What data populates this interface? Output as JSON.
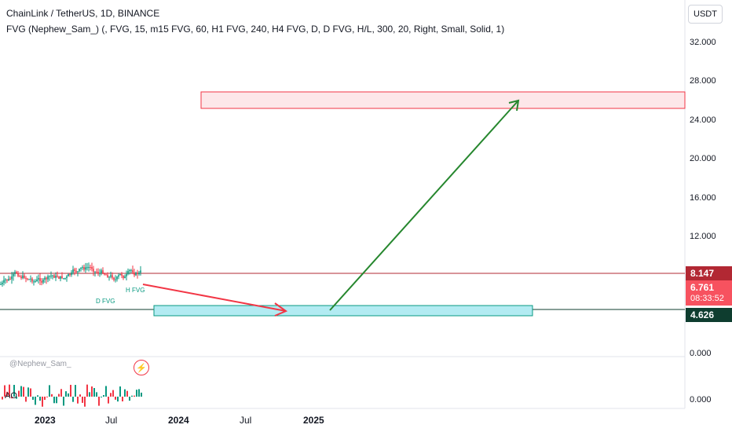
{
  "header": {
    "symbol_line": "ChainLink / TetherUS, 1D, BINANCE",
    "indicator_line": "FVG (Nephew_Sam_) (, FVG, 15, m15 FVG, 60, H1 FVG, 240, H4 FVG, D, D FVG, H/L, 300, 20, Right, Small, Solid, 1)"
  },
  "toolbar": {
    "currency": "USDT"
  },
  "price_axis": {
    "ticks": [
      "32.000",
      "28.000",
      "24.000",
      "20.000",
      "16.000",
      "12.000",
      "0.000"
    ],
    "sub_tick": "0.000"
  },
  "time_axis": {
    "ticks": [
      "2023",
      "Jul",
      "2024",
      "Jul",
      "2025"
    ]
  },
  "price_labels": {
    "resistance": {
      "value": "8.147",
      "color": "#b22833"
    },
    "current": {
      "value": "6.761",
      "countdown": "08:33:52",
      "color": "#f7525f"
    },
    "support": {
      "value": "4.626",
      "color": "#0e3d2f"
    }
  },
  "drawings": {
    "upper_zone_color": "#f23645",
    "lower_zone_color": "#089981",
    "arrow_down_color": "#f23645",
    "arrow_up_color": "#26872e"
  },
  "indicator_pane": {
    "name": "AO",
    "author": "@Nephew_Sam_",
    "bolt_icon": "bolt-icon"
  },
  "fvg_tags": {
    "low_tag": "D FVG",
    "mid_tag": "H FVG"
  }
}
